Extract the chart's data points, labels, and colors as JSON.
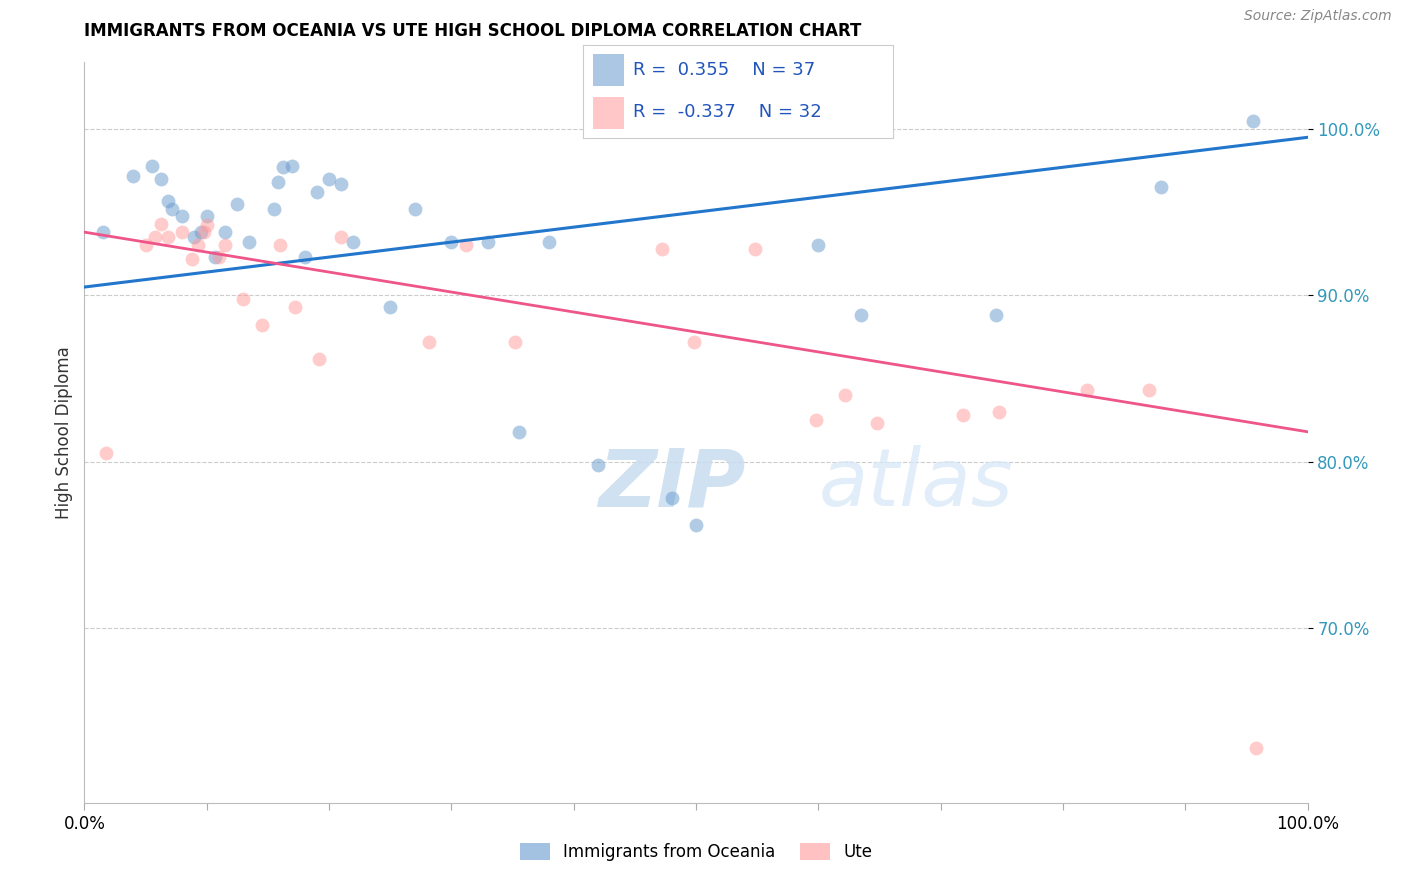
{
  "title": "IMMIGRANTS FROM OCEANIA VS UTE HIGH SCHOOL DIPLOMA CORRELATION CHART",
  "source": "Source: ZipAtlas.com",
  "ylabel": "High School Diploma",
  "y_ticks": [
    0.7,
    0.8,
    0.9,
    1.0
  ],
  "y_tick_labels": [
    "70.0%",
    "80.0%",
    "90.0%",
    "100.0%"
  ],
  "x_range": [
    0.0,
    1.0
  ],
  "y_range": [
    0.595,
    1.04
  ],
  "legend_blue_r": "0.355",
  "legend_blue_n": "37",
  "legend_pink_r": "-0.337",
  "legend_pink_n": "32",
  "blue_color": "#6699CC",
  "pink_color": "#FF9999",
  "blue_line_color": "#2277CC",
  "pink_line_color": "#EE5588",
  "watermark_zip": "ZIP",
  "watermark_atlas": "atlas",
  "blue_scatter_x": [
    0.015,
    0.04,
    0.055,
    0.063,
    0.068,
    0.072,
    0.08,
    0.09,
    0.095,
    0.1,
    0.107,
    0.115,
    0.125,
    0.135,
    0.155,
    0.158,
    0.162,
    0.17,
    0.18,
    0.19,
    0.2,
    0.21,
    0.22,
    0.25,
    0.27,
    0.3,
    0.33,
    0.355,
    0.38,
    0.42,
    0.48,
    0.5,
    0.6,
    0.635,
    0.745,
    0.88,
    0.955
  ],
  "blue_scatter_y": [
    0.938,
    0.972,
    0.978,
    0.97,
    0.957,
    0.952,
    0.948,
    0.935,
    0.938,
    0.948,
    0.923,
    0.938,
    0.955,
    0.932,
    0.952,
    0.968,
    0.977,
    0.978,
    0.923,
    0.962,
    0.97,
    0.967,
    0.932,
    0.893,
    0.952,
    0.932,
    0.932,
    0.818,
    0.932,
    0.798,
    0.778,
    0.762,
    0.93,
    0.888,
    0.888,
    0.965,
    1.005
  ],
  "pink_scatter_x": [
    0.018,
    0.05,
    0.058,
    0.063,
    0.068,
    0.08,
    0.088,
    0.093,
    0.098,
    0.1,
    0.11,
    0.115,
    0.13,
    0.145,
    0.16,
    0.172,
    0.192,
    0.21,
    0.282,
    0.312,
    0.352,
    0.472,
    0.498,
    0.548,
    0.598,
    0.622,
    0.648,
    0.718,
    0.748,
    0.82,
    0.87,
    0.958
  ],
  "pink_scatter_y": [
    0.805,
    0.93,
    0.935,
    0.943,
    0.935,
    0.938,
    0.922,
    0.93,
    0.938,
    0.942,
    0.923,
    0.93,
    0.898,
    0.882,
    0.93,
    0.893,
    0.862,
    0.935,
    0.872,
    0.93,
    0.872,
    0.928,
    0.872,
    0.928,
    0.825,
    0.84,
    0.823,
    0.828,
    0.83,
    0.843,
    0.843,
    0.628
  ],
  "blue_line_x": [
    0.0,
    1.0
  ],
  "blue_line_y": [
    0.905,
    0.995
  ],
  "pink_line_x": [
    0.0,
    1.0
  ],
  "pink_line_y": [
    0.938,
    0.818
  ]
}
